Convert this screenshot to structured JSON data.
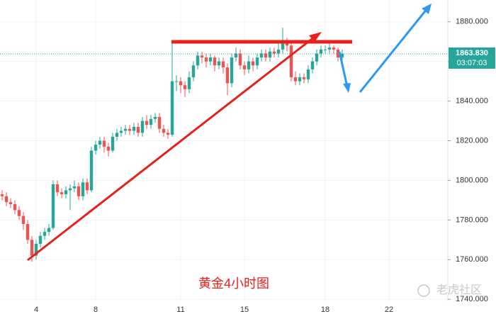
{
  "chart_data": {
    "type": "candlestick",
    "title": "黄金4小时图",
    "watermark": "老虎社区",
    "categories": [
      null,
      null,
      null,
      null,
      null,
      null,
      null,
      null,
      "4",
      null,
      null,
      null,
      null,
      null,
      null,
      null,
      null,
      null,
      null,
      null,
      null,
      null,
      "8",
      null,
      null,
      null,
      null,
      null,
      null,
      null,
      null,
      null,
      null,
      null,
      null,
      null,
      null,
      null,
      null,
      null,
      null,
      null,
      "11",
      null,
      null,
      null,
      null,
      null,
      null,
      null,
      null,
      null,
      null,
      null,
      null,
      null,
      null,
      "15",
      null,
      null,
      null,
      null,
      null,
      null,
      null,
      null,
      null,
      null,
      null,
      null,
      null,
      null,
      null,
      null,
      null,
      null,
      "18",
      null,
      null,
      null,
      null,
      null,
      null,
      null,
      null,
      null,
      null,
      null,
      null,
      null,
      null,
      "22",
      null,
      null,
      null,
      null,
      null,
      null,
      null,
      null,
      null,
      null,
      null,
      null,
      null
    ],
    "open": [
      1793,
      1792,
      1789,
      1788,
      1785,
      1782,
      1778,
      1770,
      1762,
      1768,
      1772,
      1774,
      1776,
      1798,
      1794,
      1793,
      1795,
      1796,
      1797,
      1792,
      1799,
      1795,
      1815,
      1818,
      1820,
      1817,
      1815,
      1822,
      1824,
      1825,
      1826,
      1825,
      1827,
      1824,
      1830,
      1828,
      1831,
      1832,
      1826,
      1824,
      1823,
      1850,
      1850,
      1848,
      1846,
      1852,
      1858,
      1863,
      1862,
      1860,
      1862,
      1858,
      1860,
      1857,
      1849,
      1862,
      1864,
      1858,
      1856,
      1860,
      1858,
      1862,
      1864,
      1862,
      1865,
      1864,
      1866,
      1870,
      1868,
      1852,
      1850,
      1852,
      1851,
      1856,
      1860,
      1864,
      1866,
      1866,
      1867,
      1866,
      1862,
      null,
      null,
      null,
      null,
      null,
      null,
      null,
      null,
      null,
      null,
      null,
      null,
      null,
      null,
      null,
      null,
      null,
      null,
      null,
      null,
      null,
      null,
      null,
      null
    ],
    "high": [
      1795,
      1794,
      1791,
      1790,
      1787,
      1784,
      1780,
      1772,
      1770,
      1774,
      1776,
      1778,
      1800,
      1800,
      1796,
      1797,
      1798,
      1800,
      1799,
      1801,
      1801,
      1817,
      1820,
      1822,
      1822,
      1819,
      1824,
      1826,
      1827,
      1828,
      1828,
      1829,
      1829,
      1832,
      1833,
      1833,
      1834,
      1834,
      1828,
      1826,
      1869,
      1853,
      1852,
      1850,
      1855,
      1860,
      1865,
      1865,
      1864,
      1864,
      1863,
      1862,
      1862,
      1859,
      1864,
      1867,
      1866,
      1860,
      1863,
      1862,
      1864,
      1866,
      1866,
      1867,
      1867,
      1869,
      1877,
      1872,
      1870,
      1855,
      1854,
      1854,
      1858,
      1862,
      1866,
      1868,
      1868,
      1869,
      1868,
      1867,
      1866,
      null,
      null,
      null,
      null,
      null,
      null,
      null,
      null,
      null,
      null,
      null,
      null,
      null,
      null,
      null,
      null,
      null,
      null,
      null,
      null,
      null,
      null,
      null,
      null
    ],
    "low": [
      1790,
      1787,
      1786,
      1783,
      1780,
      1775,
      1768,
      1759,
      1760,
      1766,
      1770,
      1772,
      1775,
      1792,
      1791,
      1791,
      1785,
      1794,
      1790,
      1790,
      1793,
      1794,
      1813,
      1816,
      1814,
      1812,
      1814,
      1820,
      1822,
      1823,
      1823,
      1823,
      1822,
      1822,
      1826,
      1826,
      1829,
      1824,
      1822,
      1821,
      1822,
      1845,
      1844,
      1842,
      1844,
      1850,
      1856,
      1859,
      1857,
      1858,
      1855,
      1856,
      1854,
      1843,
      1847,
      1860,
      1856,
      1853,
      1854,
      1855,
      1856,
      1860,
      1860,
      1860,
      1862,
      1862,
      1864,
      1865,
      1850,
      1848,
      1848,
      1849,
      1849,
      1854,
      1858,
      1862,
      1864,
      1864,
      1864,
      1860,
      1860,
      null,
      null,
      null,
      null,
      null,
      null,
      null,
      null,
      null,
      null,
      null,
      null,
      null,
      null,
      null,
      null,
      null,
      null,
      null,
      null,
      null,
      null,
      null,
      null
    ],
    "close": [
      1792,
      1789,
      1788,
      1785,
      1782,
      1778,
      1770,
      1762,
      1768,
      1772,
      1774,
      1776,
      1798,
      1794,
      1793,
      1795,
      1796,
      1797,
      1792,
      1799,
      1795,
      1815,
      1818,
      1820,
      1817,
      1815,
      1822,
      1824,
      1825,
      1826,
      1825,
      1827,
      1824,
      1830,
      1828,
      1831,
      1832,
      1826,
      1824,
      1823,
      1850,
      1850,
      1848,
      1846,
      1852,
      1858,
      1863,
      1862,
      1860,
      1862,
      1858,
      1860,
      1857,
      1849,
      1862,
      1864,
      1858,
      1856,
      1860,
      1858,
      1862,
      1864,
      1862,
      1865,
      1864,
      1866,
      1870,
      1868,
      1852,
      1850,
      1852,
      1851,
      1856,
      1860,
      1864,
      1866,
      1866,
      1867,
      1866,
      1862,
      1864,
      null,
      null,
      null,
      null,
      null,
      null,
      null,
      null,
      null,
      null,
      null,
      null,
      null,
      null,
      null,
      null,
      null,
      null,
      null,
      null,
      null,
      null,
      null,
      null
    ],
    "up_color": "#26a69a",
    "down_color": "#ef5350",
    "ylim": [
      1739,
      1891
    ],
    "yticks": [
      {
        "value": 1740,
        "label": "1740.000"
      },
      {
        "value": 1760,
        "label": "1760.000"
      },
      {
        "value": 1780,
        "label": "1780.000"
      },
      {
        "value": 1800,
        "label": "1800.000"
      },
      {
        "value": 1820,
        "label": "1820.000"
      },
      {
        "value": 1840,
        "label": "1840.000"
      },
      {
        "value": 1860,
        "label": "1860.000"
      },
      {
        "value": 1880,
        "label": "1880.000"
      }
    ],
    "last_price": {
      "value": 1863.83,
      "label": "1863.830"
    },
    "countdown": "03:07:03"
  }
}
